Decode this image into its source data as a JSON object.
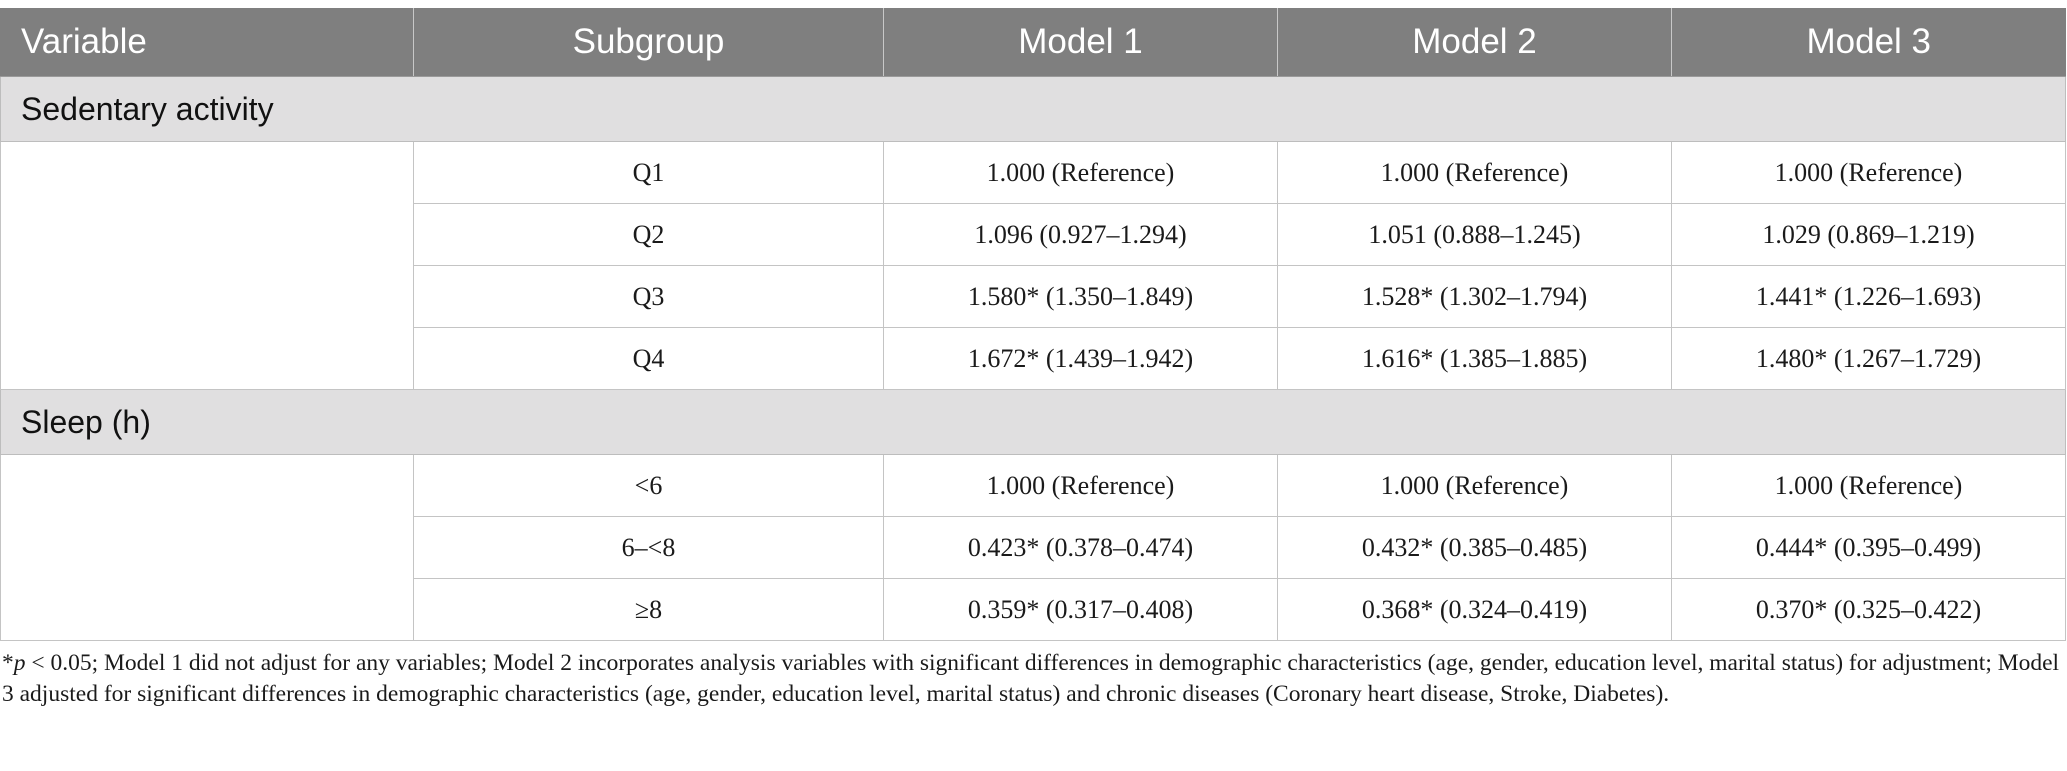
{
  "header": [
    "Variable",
    "Subgroup",
    "Model 1",
    "Model 2",
    "Model 3"
  ],
  "sections": [
    {
      "label": "Sedentary activity",
      "rows": [
        {
          "subgroup": "Q1",
          "m1": "1.000 (Reference)",
          "m2": "1.000 (Reference)",
          "m3": "1.000 (Reference)"
        },
        {
          "subgroup": "Q2",
          "m1": "1.096 (0.927–1.294)",
          "m2": "1.051 (0.888–1.245)",
          "m3": "1.029 (0.869–1.219)"
        },
        {
          "subgroup": "Q3",
          "m1": "1.580* (1.350–1.849)",
          "m2": "1.528* (1.302–1.794)",
          "m3": "1.441* (1.226–1.693)"
        },
        {
          "subgroup": "Q4",
          "m1": "1.672* (1.439–1.942)",
          "m2": "1.616* (1.385–1.885)",
          "m3": "1.480* (1.267–1.729)"
        }
      ]
    },
    {
      "label": "Sleep (h)",
      "rows": [
        {
          "subgroup": "<6",
          "m1": "1.000 (Reference)",
          "m2": "1.000 (Reference)",
          "m3": "1.000 (Reference)"
        },
        {
          "subgroup": "6–<8",
          "m1": "0.423* (0.378–0.474)",
          "m2": "0.432* (0.385–0.485)",
          "m3": "0.444* (0.395–0.499)"
        },
        {
          "subgroup": "≥8",
          "m1": "0.359* (0.317–0.408)",
          "m2": "0.368* (0.324–0.419)",
          "m3": "0.370* (0.325–0.422)"
        }
      ]
    }
  ],
  "footnote": {
    "prefix": "*",
    "p_symbol": "p",
    "text": " < 0.05; Model 1 did not adjust for any variables; Model 2 incorporates analysis variables with significant differences in demographic characteristics (age, gender, education level, marital status) for adjustment; Model 3 adjusted for significant differences in demographic characteristics (age, gender, education level, marital status) and chronic diseases (Coronary heart disease, Stroke, Diabetes)."
  }
}
